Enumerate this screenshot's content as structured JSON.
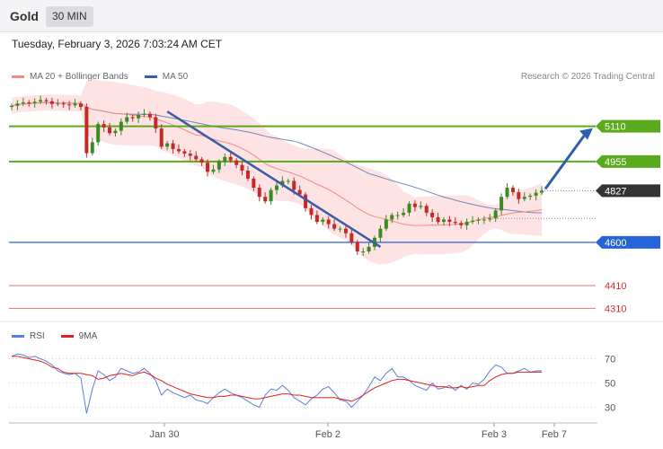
{
  "header": {
    "symbol": "Gold",
    "timeframe": "30 MIN"
  },
  "datetime": "Tuesday, February 3, 2026 7:03:24 AM CET",
  "legend": {
    "ma20": {
      "label": "MA 20 + Bollinger Bands",
      "color": "#f28b82"
    },
    "ma50": {
      "label": "MA 50",
      "color": "#3a5da8"
    }
  },
  "copyright": "Research © 2026 Trading Central",
  "rsi_legend": {
    "rsi": {
      "label": "RSI",
      "color": "#5b7ee0"
    },
    "ma9": {
      "label": "9MA",
      "color": "#e02020"
    }
  },
  "chart_data": [
    {
      "type": "candlestick",
      "title": "Gold",
      "timeframe": "30 MIN",
      "x_ticks": [
        "Jan 30",
        "Feb 2",
        "Feb 3",
        "Feb 7"
      ],
      "ylim": [
        4260,
        5290
      ],
      "current_price": 4827,
      "close_series": [
        5200,
        5210,
        5215,
        5212,
        5218,
        5225,
        5220,
        5208,
        5210,
        5206,
        5202,
        5210,
        5195,
        4992,
        5040,
        5120,
        5105,
        5080,
        5090,
        5130,
        5150,
        5145,
        5160,
        5165,
        5150,
        5100,
        5020,
        5035,
        5010,
        5000,
        4990,
        4980,
        4965,
        4950,
        4910,
        4920,
        4955,
        4975,
        4960,
        4940,
        4915,
        4880,
        4840,
        4800,
        4780,
        4830,
        4850,
        4870,
        4870,
        4830,
        4810,
        4750,
        4720,
        4690,
        4700,
        4680,
        4660,
        4660,
        4640,
        4600,
        4560,
        4560,
        4580,
        4620,
        4660,
        4700,
        4720,
        4720,
        4730,
        4770,
        4755,
        4760,
        4730,
        4710,
        4690,
        4700,
        4690,
        4685,
        4675,
        4690,
        4695,
        4700,
        4700,
        4705,
        4740,
        4800,
        4840,
        4820,
        4790,
        4800,
        4805,
        4818,
        4827
      ],
      "levels": [
        {
          "label": "5110",
          "value": 5110,
          "color": "#5aaa1e",
          "side": "resistance"
        },
        {
          "label": "4955",
          "value": 4955,
          "color": "#5aaa1e",
          "side": "resistance"
        },
        {
          "label": "4600",
          "value": 4600,
          "color": "#2563d8",
          "side": "support"
        },
        {
          "label": "4410",
          "value": 4410,
          "color": "#e57373",
          "side": "support"
        },
        {
          "label": "4310",
          "value": 4310,
          "color": "#e57373",
          "side": "support"
        }
      ],
      "trendline": [
        [
          27,
          5175
        ],
        [
          64,
          4580
        ]
      ],
      "forecast_arrow": {
        "from": 4827,
        "to": 5110
      }
    },
    {
      "type": "line",
      "title": "RSI",
      "ylim": [
        20,
        80
      ],
      "y_ticks": [
        70,
        50,
        30
      ],
      "series": [
        {
          "name": "RSI",
          "values": [
            72,
            74,
            73,
            71,
            72,
            70,
            68,
            65,
            60,
            58,
            57,
            58,
            54,
            25,
            45,
            60,
            57,
            52,
            55,
            62,
            60,
            58,
            59,
            62,
            58,
            52,
            40,
            45,
            42,
            40,
            38,
            40,
            36,
            35,
            33,
            38,
            42,
            45,
            42,
            40,
            38,
            35,
            32,
            30,
            40,
            45,
            44,
            48,
            44,
            38,
            35,
            32,
            37,
            40,
            45,
            47,
            42,
            36,
            35,
            30,
            35,
            40,
            47,
            55,
            52,
            58,
            62,
            55,
            55,
            52,
            48,
            46,
            44,
            50,
            45,
            46,
            48,
            44,
            48,
            45,
            50,
            49,
            53,
            60,
            65,
            63,
            58,
            58,
            60,
            62,
            59,
            60,
            60
          ]
        },
        {
          "name": "9MA",
          "values": [
            72,
            72,
            71,
            70,
            69,
            68,
            66,
            63,
            62,
            59,
            58,
            58,
            58,
            57,
            56,
            53,
            54,
            56,
            57,
            58,
            57,
            56,
            58,
            59,
            57,
            54,
            52,
            49,
            47,
            45,
            43,
            41,
            40,
            39,
            38,
            38,
            39,
            39,
            40,
            40,
            39,
            38,
            37,
            37,
            38,
            39,
            40,
            41,
            41,
            40,
            40,
            39,
            38,
            38,
            38,
            38,
            38,
            37,
            36,
            35,
            37,
            40,
            43,
            46,
            48,
            50,
            52,
            53,
            53,
            52,
            51,
            50,
            49,
            48,
            47,
            47,
            46,
            46,
            47,
            46,
            47,
            48,
            48,
            52,
            55,
            57,
            58,
            58,
            59,
            59,
            59,
            59,
            59
          ]
        }
      ]
    }
  ]
}
